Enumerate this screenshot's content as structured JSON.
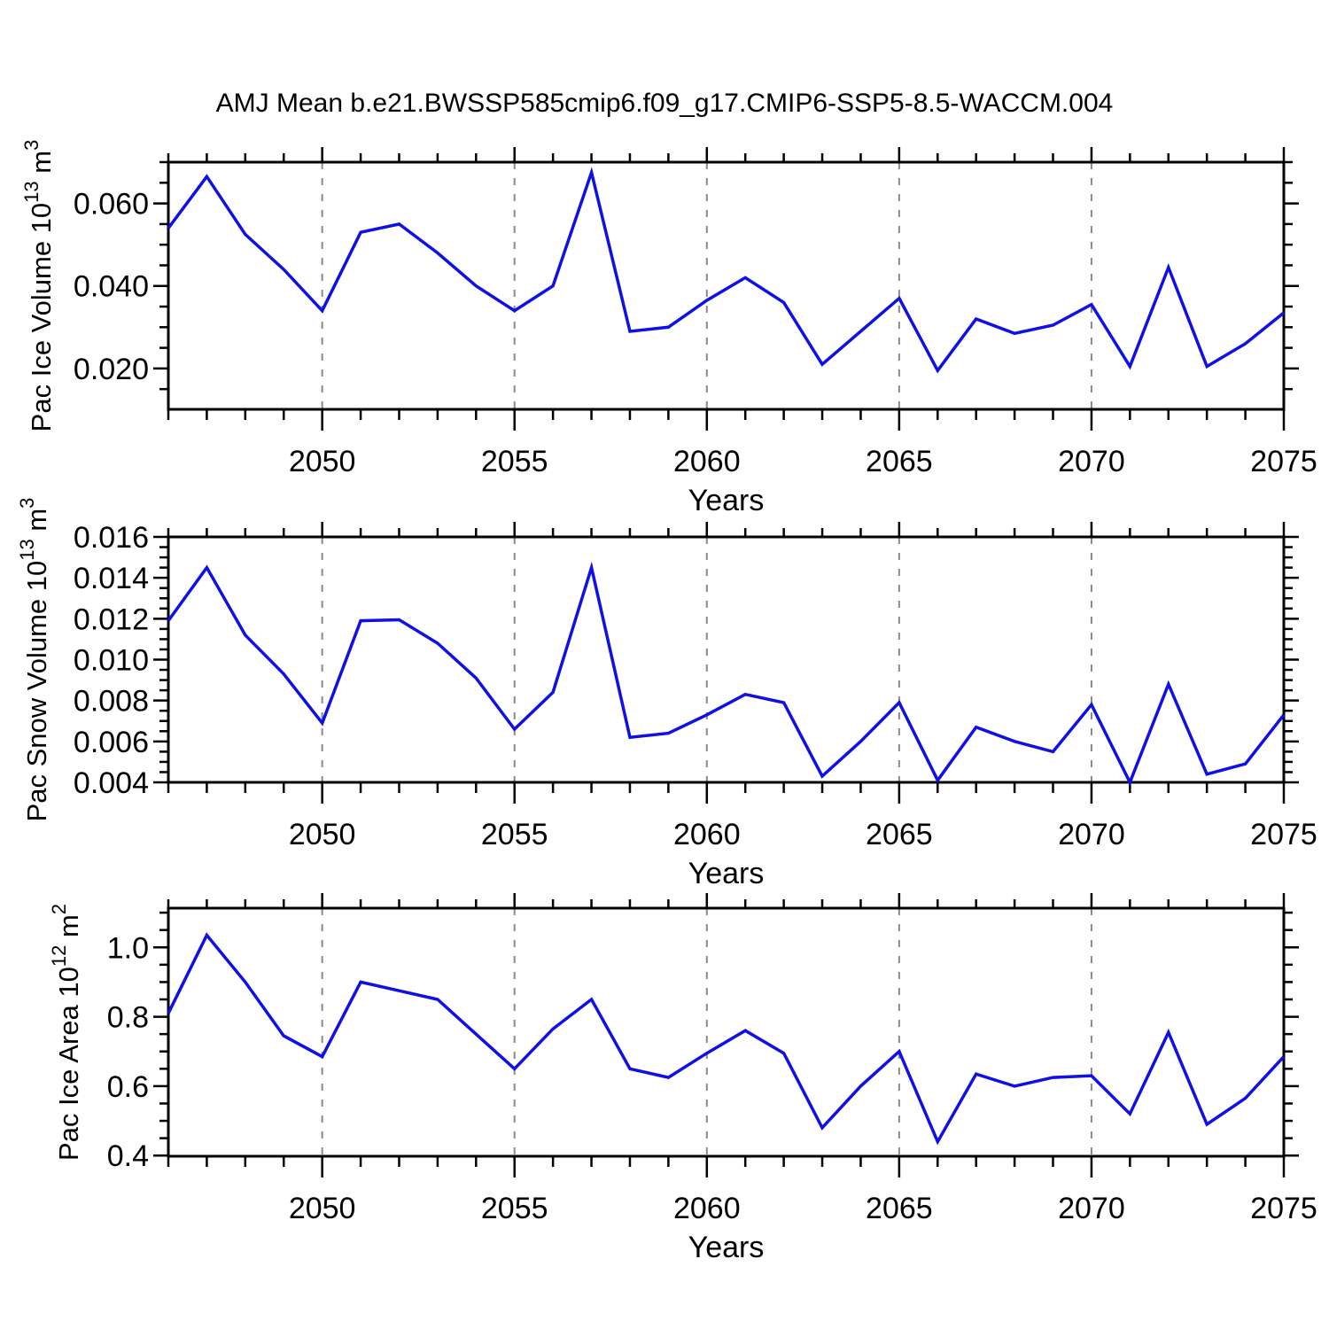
{
  "title": "AMJ Mean b.e21.BWSSP585cmip6.f09_g17.CMIP6-SSP5-8.5-WACCM.004",
  "xlabel": "Years",
  "colors": {
    "line": "#0F0FE8",
    "grid": "#8A8A8A",
    "axis": "#000000",
    "text": "#000000",
    "background": "#FFFFFF"
  },
  "x_years": [
    2046,
    2047,
    2048,
    2049,
    2050,
    2051,
    2052,
    2053,
    2054,
    2055,
    2056,
    2057,
    2058,
    2059,
    2060,
    2061,
    2062,
    2063,
    2064,
    2065,
    2066,
    2067,
    2068,
    2069,
    2070,
    2071,
    2072,
    2073,
    2074,
    2075
  ],
  "x_tick_labels": [
    {
      "year": 2050,
      "label": "2050"
    },
    {
      "year": 2055,
      "label": "2055"
    },
    {
      "year": 2060,
      "label": "2060"
    },
    {
      "year": 2065,
      "label": "2065"
    },
    {
      "year": 2070,
      "label": "2070"
    },
    {
      "year": 2075,
      "label": "2075"
    }
  ],
  "gridline_years": [
    2050,
    2055,
    2060,
    2065,
    2070
  ],
  "chart_data": [
    {
      "type": "line",
      "name": "pac-ice-volume",
      "ylabel": "Pac Ice Volume 10¹³ m³",
      "ylabel_parts": [
        {
          "t": "Pac Ice Volume 10"
        },
        {
          "t": "13",
          "sup": true
        },
        {
          "t": " m"
        },
        {
          "t": "3",
          "sup": true
        }
      ],
      "xlabel": "Years",
      "ylim": [
        0.0101,
        0.07
      ],
      "yticks": [
        {
          "value": 0.02,
          "label": "0.020"
        },
        {
          "value": 0.04,
          "label": "0.040"
        },
        {
          "value": 0.06,
          "label": "0.060"
        }
      ],
      "yminor_step": 0.005,
      "x": [
        2046,
        2047,
        2048,
        2049,
        2050,
        2051,
        2052,
        2053,
        2054,
        2055,
        2056,
        2057,
        2058,
        2059,
        2060,
        2061,
        2062,
        2063,
        2064,
        2065,
        2066,
        2067,
        2068,
        2069,
        2070,
        2071,
        2072,
        2073,
        2074,
        2075
      ],
      "values": [
        0.054,
        0.0665,
        0.0525,
        0.044,
        0.034,
        0.053,
        0.055,
        0.048,
        0.04,
        0.034,
        0.04,
        0.0675,
        0.029,
        0.03,
        0.0365,
        0.042,
        0.036,
        0.021,
        0.029,
        0.037,
        0.0195,
        0.032,
        0.0285,
        0.0305,
        0.0355,
        0.0205,
        0.0445,
        0.0205,
        0.026,
        0.0335
      ]
    },
    {
      "type": "line",
      "name": "pac-snow-volume",
      "ylabel": "Pac Snow Volume 10¹³ m³",
      "ylabel_parts": [
        {
          "t": "Pac Snow Volume 10"
        },
        {
          "t": "13",
          "sup": true
        },
        {
          "t": " m"
        },
        {
          "t": "3",
          "sup": true
        }
      ],
      "xlabel": "Years",
      "ylim": [
        0.004,
        0.016
      ],
      "yticks": [
        {
          "value": 0.004,
          "label": "0.004"
        },
        {
          "value": 0.006,
          "label": "0.006"
        },
        {
          "value": 0.008,
          "label": "0.008"
        },
        {
          "value": 0.01,
          "label": "0.010"
        },
        {
          "value": 0.012,
          "label": "0.012"
        },
        {
          "value": 0.014,
          "label": "0.014"
        },
        {
          "value": 0.016,
          "label": "0.016"
        }
      ],
      "yminor_step": 0.0005,
      "x": [
        2046,
        2047,
        2048,
        2049,
        2050,
        2051,
        2052,
        2053,
        2054,
        2055,
        2056,
        2057,
        2058,
        2059,
        2060,
        2061,
        2062,
        2063,
        2064,
        2065,
        2066,
        2067,
        2068,
        2069,
        2070,
        2071,
        2072,
        2073,
        2074,
        2075
      ],
      "values": [
        0.0119,
        0.0145,
        0.0112,
        0.0093,
        0.0069,
        0.0119,
        0.01195,
        0.0108,
        0.0091,
        0.0066,
        0.0084,
        0.0145,
        0.0062,
        0.0064,
        0.0073,
        0.0083,
        0.0079,
        0.0043,
        0.006,
        0.0079,
        0.0041,
        0.0067,
        0.006,
        0.0055,
        0.0078,
        0.004,
        0.0088,
        0.0044,
        0.0049,
        0.0073
      ]
    },
    {
      "type": "line",
      "name": "pac-ice-area",
      "ylabel": "Pac Ice Area 10¹² m²",
      "ylabel_parts": [
        {
          "t": "Pac Ice Area 10"
        },
        {
          "t": "12",
          "sup": true
        },
        {
          "t": " m"
        },
        {
          "t": "2",
          "sup": true
        }
      ],
      "xlabel": "Years",
      "ylim": [
        0.398,
        1.113
      ],
      "yticks": [
        {
          "value": 0.4,
          "label": "0.4"
        },
        {
          "value": 0.6,
          "label": "0.6"
        },
        {
          "value": 0.8,
          "label": "0.8"
        },
        {
          "value": 1.0,
          "label": "1.0"
        }
      ],
      "yminor_step": 0.05,
      "x": [
        2046,
        2047,
        2048,
        2049,
        2050,
        2051,
        2052,
        2053,
        2054,
        2055,
        2056,
        2057,
        2058,
        2059,
        2060,
        2061,
        2062,
        2063,
        2064,
        2065,
        2066,
        2067,
        2068,
        2069,
        2070,
        2071,
        2072,
        2073,
        2074,
        2075
      ],
      "values": [
        0.81,
        1.035,
        0.9,
        0.745,
        0.685,
        0.9,
        0.875,
        0.85,
        0.75,
        0.65,
        0.765,
        0.85,
        0.65,
        0.625,
        0.695,
        0.76,
        0.695,
        0.48,
        0.6,
        0.7,
        0.44,
        0.635,
        0.6,
        0.625,
        0.63,
        0.52,
        0.755,
        0.49,
        0.565,
        0.685
      ]
    }
  ]
}
